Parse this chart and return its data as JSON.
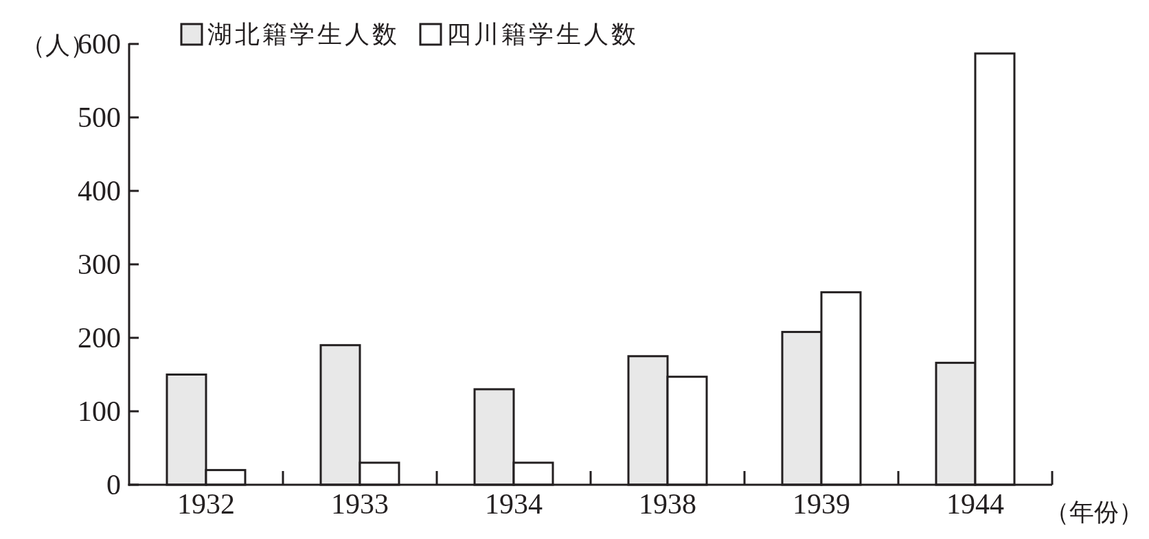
{
  "chart_data": {
    "type": "bar",
    "categories": [
      "1932",
      "1933",
      "1934",
      "1938",
      "1939",
      "1944"
    ],
    "series": [
      {
        "name": "湖北籍学生人数",
        "color": "#e8e8e8",
        "values": [
          150,
          190,
          130,
          175,
          208,
          166
        ]
      },
      {
        "name": "四川籍学生人数",
        "color": "#ffffff",
        "values": [
          20,
          30,
          30,
          147,
          262,
          587
        ]
      }
    ],
    "ylabel": "（人）",
    "xlabel": "（年份）",
    "ylim": [
      0,
      600
    ],
    "yticks": [
      0,
      100,
      200,
      300,
      400,
      500,
      600
    ],
    "legend": "top left",
    "grid": false
  }
}
